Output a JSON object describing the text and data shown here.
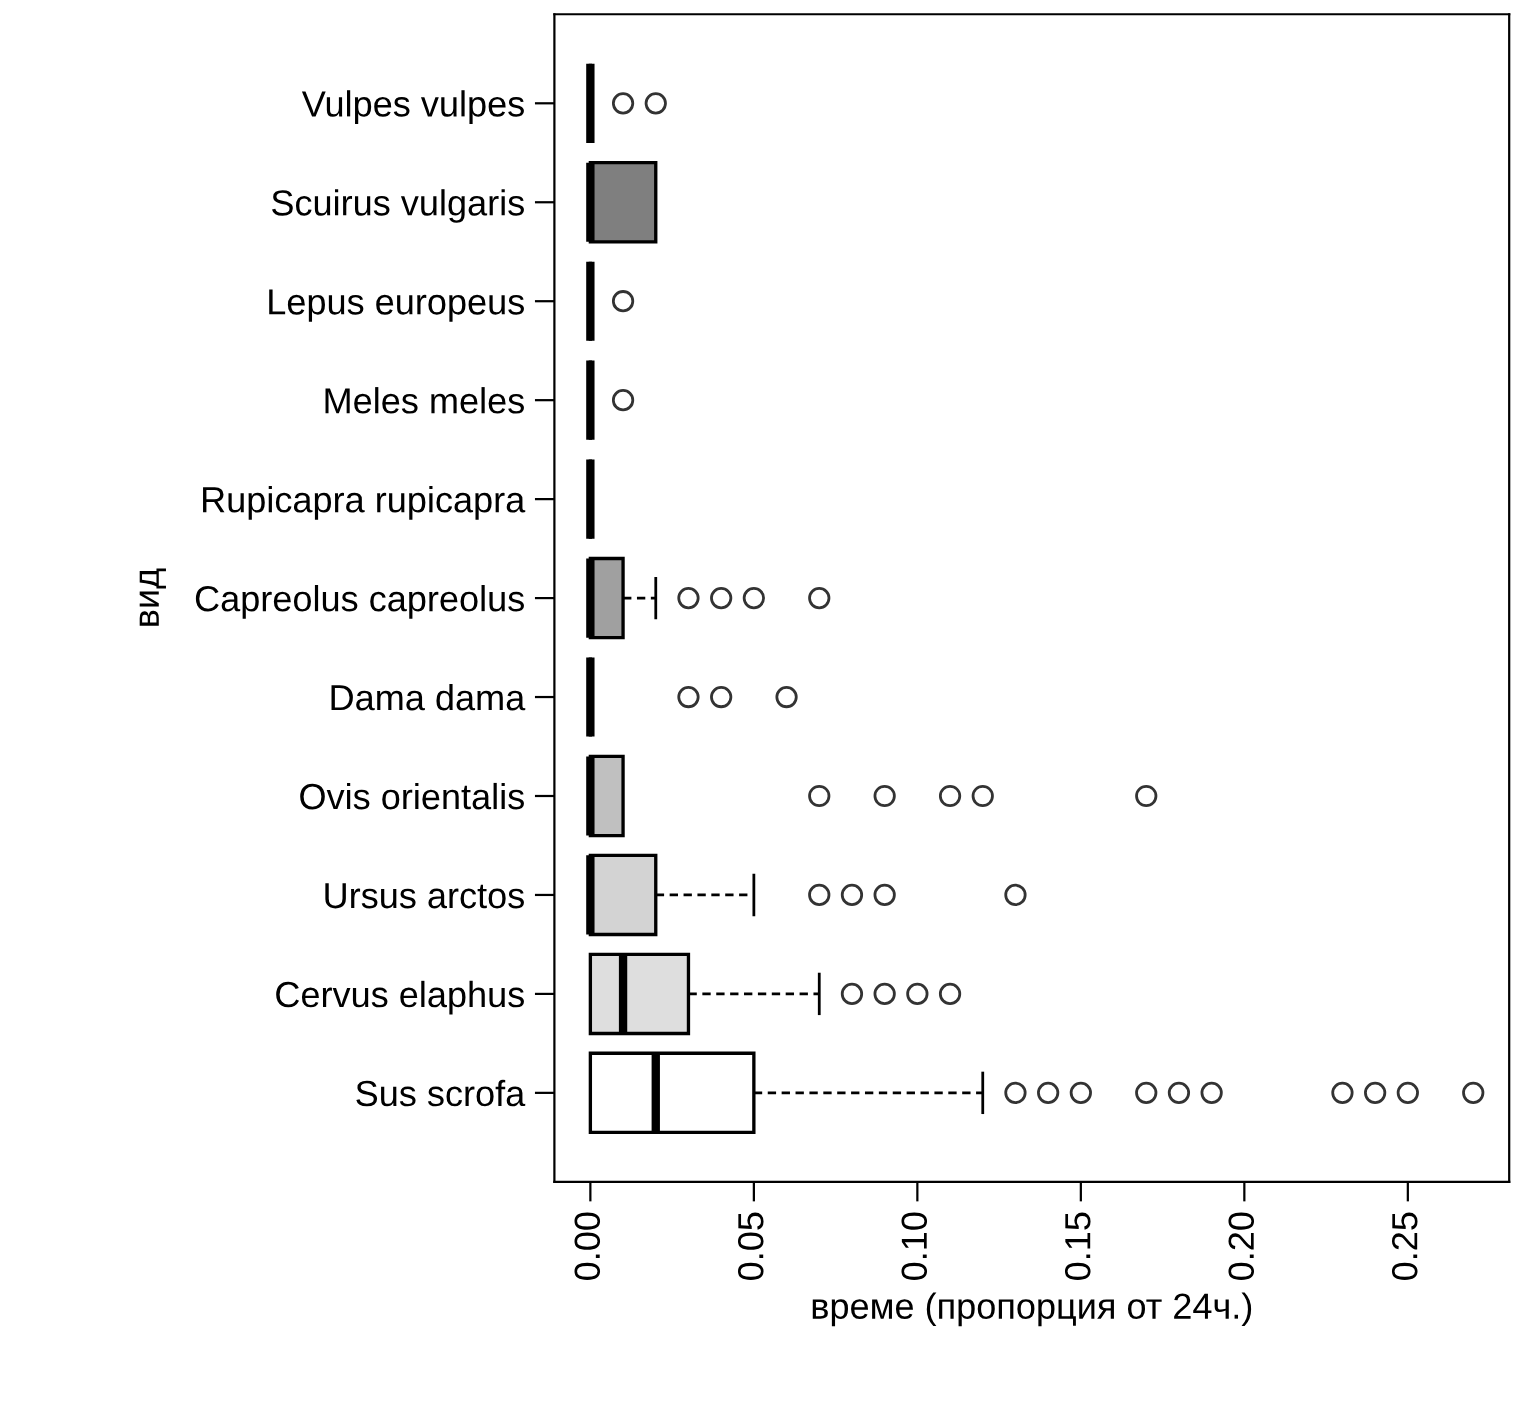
{
  "chart_data": {
    "type": "box",
    "orientation": "horizontal",
    "xlabel": "време (пропорция от 24ч.)",
    "ylabel": "вид",
    "categories": [
      "Vulpes vulpes",
      "Scuirus vulgaris",
      "Lepus europeus",
      "Meles meles",
      "Rupicapra rupicapra",
      "Capreolus capreolus",
      "Dama dama",
      "Ovis orientalis",
      "Ursus arctos",
      "Cervus elaphus",
      "Sus scrofa"
    ],
    "colors": [
      "#000000",
      "#7f7f7f",
      "#000000",
      "#000000",
      "#000000",
      "#a0a0a0",
      "#000000",
      "#c0c0c0",
      "#d3d3d3",
      "#dedede",
      "#ffffff"
    ],
    "boxes": [
      {
        "low": 0,
        "q1": 0,
        "median": 0,
        "q3": 0,
        "high": 0,
        "outliers": [
          0.01,
          0.02
        ]
      },
      {
        "low": 0,
        "q1": 0,
        "median": 0,
        "q3": 0.02,
        "high": 0.02
      },
      {
        "low": 0,
        "q1": 0,
        "median": 0,
        "q3": 0,
        "high": 0,
        "outliers": [
          0.01
        ]
      },
      {
        "low": 0,
        "q1": 0,
        "median": 0,
        "q3": 0,
        "high": 0,
        "outliers": [
          0.01
        ]
      },
      {
        "low": 0,
        "q1": 0,
        "median": 0,
        "q3": 0,
        "high": 0
      },
      {
        "low": 0,
        "q1": 0,
        "median": 0,
        "q3": 0.01,
        "high": 0.02,
        "outliers": [
          0.03,
          0.04,
          0.05,
          0.07
        ]
      },
      {
        "low": 0,
        "q1": 0,
        "median": 0,
        "q3": 0,
        "high": 0,
        "outliers": [
          0.03,
          0.04,
          0.06
        ]
      },
      {
        "low": 0,
        "q1": 0,
        "median": 0,
        "q3": 0.01,
        "high": 0.01,
        "outliers": [
          0.07,
          0.09,
          0.11,
          0.12,
          0.17
        ]
      },
      {
        "low": 0,
        "q1": 0,
        "median": 0,
        "q3": 0.02,
        "high": 0.05,
        "outliers": [
          0.07,
          0.08,
          0.09,
          0.13
        ]
      },
      {
        "low": 0,
        "q1": 0,
        "median": 0.01,
        "q3": 0.03,
        "high": 0.07,
        "outliers": [
          0.08,
          0.09,
          0.1,
          0.11
        ]
      },
      {
        "low": 0,
        "q1": 0,
        "median": 0.02,
        "q3": 0.05,
        "high": 0.12,
        "outliers": [
          0.13,
          0.14,
          0.15,
          0.17,
          0.18,
          0.19,
          0.23,
          0.24,
          0.25,
          0.27
        ]
      }
    ],
    "xlim": [
      -0.011,
      0.281
    ],
    "xticks": [
      {
        "value": 0,
        "label": "0.00"
      },
      {
        "value": 0.05,
        "label": "0.05"
      },
      {
        "value": 0.1,
        "label": "0.10"
      },
      {
        "value": 0.15,
        "label": "0.15"
      },
      {
        "value": 0.2,
        "label": "0.20"
      },
      {
        "value": 0.25,
        "label": "0.25"
      }
    ],
    "grid": false,
    "legend": false
  }
}
